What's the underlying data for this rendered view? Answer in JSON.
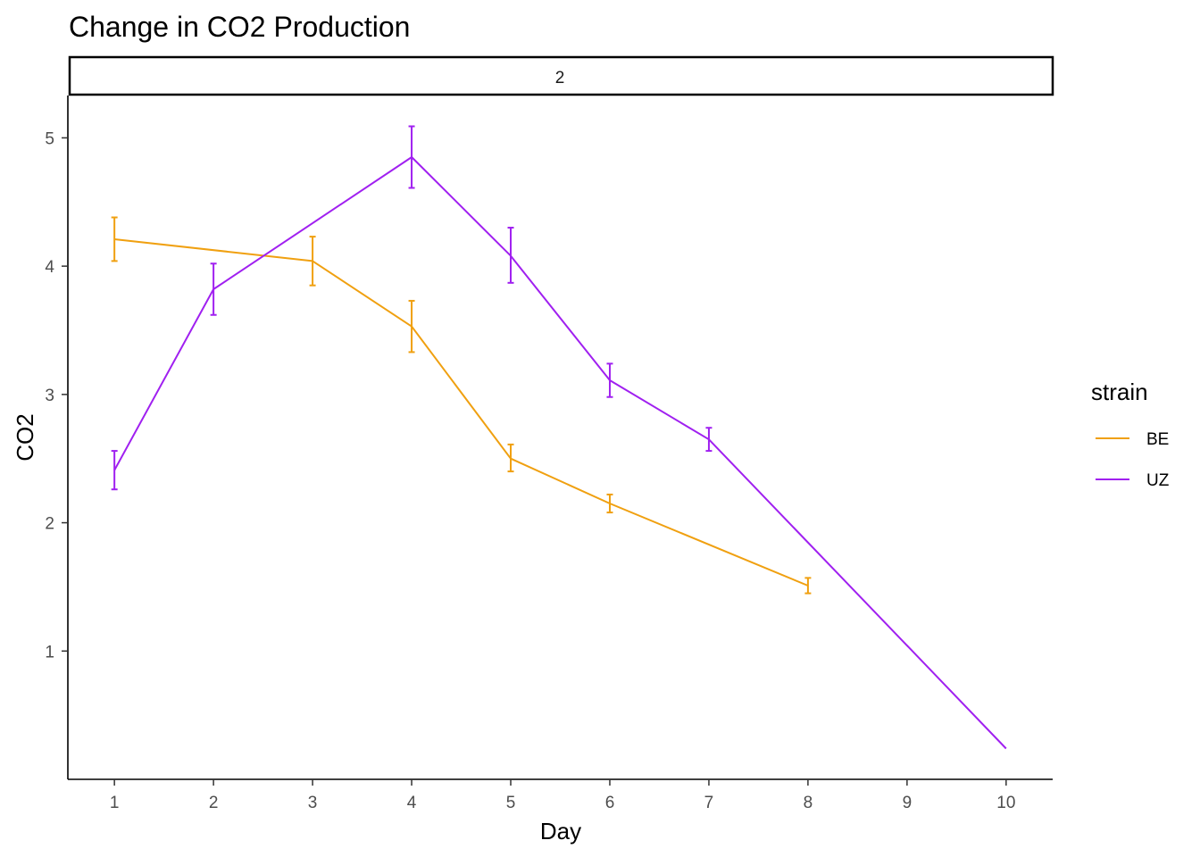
{
  "chart_data": {
    "type": "line",
    "title": "Change in CO2 Production",
    "facet_label": "2",
    "xlabel": "Day",
    "ylabel": "CO2",
    "xlim": [
      0.53,
      10.47
    ],
    "ylim": [
      0.0,
      5.33
    ],
    "x_ticks": [
      1,
      2,
      3,
      4,
      5,
      6,
      7,
      8,
      9,
      10
    ],
    "y_ticks": [
      1,
      2,
      3,
      4,
      5
    ],
    "grid": false,
    "legend": {
      "title": "strain",
      "placement": "right"
    },
    "series": [
      {
        "name": "BE",
        "color": "#f0a010",
        "points": [
          {
            "x": 1,
            "y": 4.21,
            "ymin": 4.04,
            "ymax": 4.38
          },
          {
            "x": 3,
            "y": 4.04,
            "ymin": 3.85,
            "ymax": 4.23
          },
          {
            "x": 4,
            "y": 3.53,
            "ymin": 3.33,
            "ymax": 3.73
          },
          {
            "x": 5,
            "y": 2.5,
            "ymin": 2.4,
            "ymax": 2.61
          },
          {
            "x": 6,
            "y": 2.15,
            "ymin": 2.08,
            "ymax": 2.22
          },
          {
            "x": 8,
            "y": 1.51,
            "ymin": 1.45,
            "ymax": 1.57
          }
        ]
      },
      {
        "name": "UZ",
        "color": "#a020f0",
        "points": [
          {
            "x": 1,
            "y": 2.41,
            "ymin": 2.26,
            "ymax": 2.56
          },
          {
            "x": 2,
            "y": 3.82,
            "ymin": 3.62,
            "ymax": 4.02
          },
          {
            "x": 4,
            "y": 4.85,
            "ymin": 4.61,
            "ymax": 5.09
          },
          {
            "x": 5,
            "y": 4.08,
            "ymin": 3.87,
            "ymax": 4.3
          },
          {
            "x": 6,
            "y": 3.11,
            "ymin": 2.98,
            "ymax": 3.24
          },
          {
            "x": 7,
            "y": 2.65,
            "ymin": 2.56,
            "ymax": 2.74
          },
          {
            "x": 10,
            "y": 0.24
          }
        ]
      }
    ]
  }
}
